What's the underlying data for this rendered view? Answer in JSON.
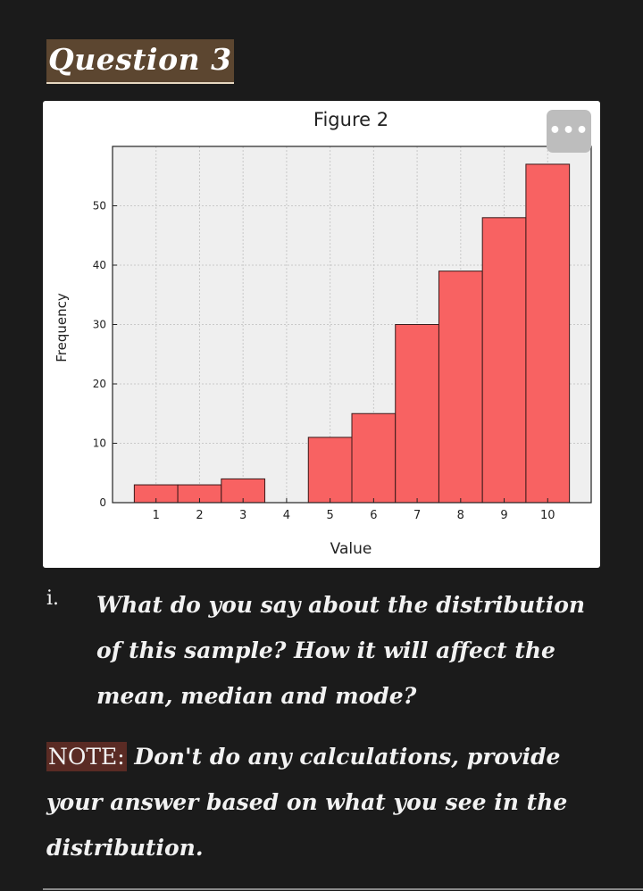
{
  "heading": {
    "title": "Question 3"
  },
  "figure": {
    "menu_label": "•••"
  },
  "chart_data": {
    "type": "bar",
    "title": "Figure 2",
    "xlabel": "Value",
    "ylabel": "Frequency",
    "categories": [
      "1",
      "2",
      "3",
      "4",
      "5",
      "6",
      "7",
      "8",
      "9",
      "10"
    ],
    "values": [
      3,
      3,
      4,
      0,
      11,
      15,
      30,
      39,
      48,
      57
    ],
    "x_ticks": [
      "1",
      "2",
      "3",
      "4",
      "5",
      "6",
      "7",
      "8",
      "9",
      "10"
    ],
    "y_ticks": [
      "0",
      "10",
      "20",
      "30",
      "40",
      "50"
    ],
    "ylim": [
      0,
      60
    ],
    "xlim": [
      0,
      11
    ],
    "grid": true,
    "colors": {
      "bar": "#f86262",
      "edge": "#3a1a1a",
      "plot_bg": "#efefef",
      "grid": "#c9c9c9"
    }
  },
  "question": {
    "number": "i.",
    "text": "What do you say about the distribution of this sample? How it will affect the mean, median and mode?"
  },
  "note": {
    "label": "NOTE:",
    "text": " Don't do any calculations, provide your answer based on what you see in the distribution."
  }
}
